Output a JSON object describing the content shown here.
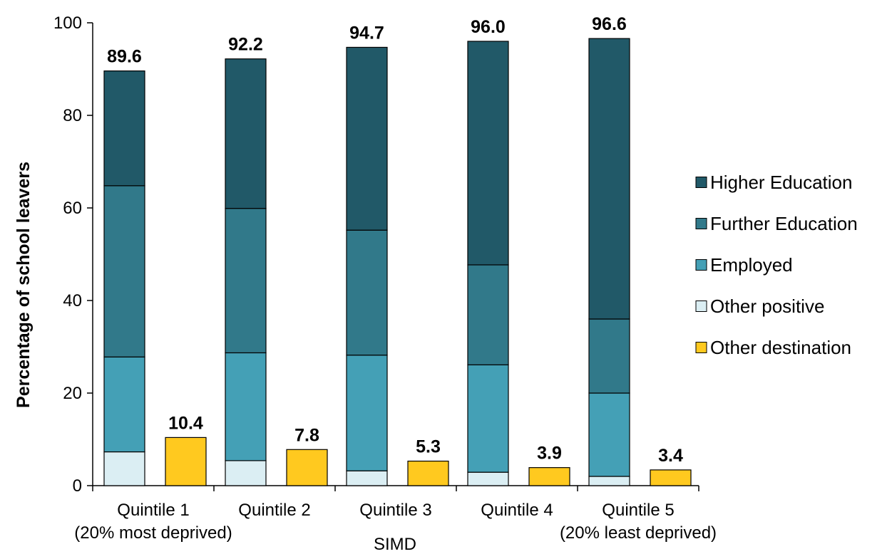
{
  "chart_data": {
    "type": "bar",
    "stacked": true,
    "ylabel": "Percentage of school leavers",
    "xlabel": "SIMD",
    "ylim": [
      0,
      100
    ],
    "yticks": [
      0,
      20,
      40,
      60,
      80,
      100
    ],
    "grid": false,
    "legend_position": "right",
    "categories": [
      {
        "line1": "Quintile 1",
        "line2": "(20% most deprived)"
      },
      {
        "line1": "Quintile 2",
        "line2": ""
      },
      {
        "line1": "Quintile 3",
        "line2": ""
      },
      {
        "line1": "Quintile 4",
        "line2": ""
      },
      {
        "line1": "Quintile 5",
        "line2": "(20% least deprived)"
      }
    ],
    "positive_series": [
      {
        "name": "Other positive",
        "color": "#dbeef3",
        "values": [
          7.3,
          5.4,
          3.2,
          2.9,
          2.0
        ]
      },
      {
        "name": "Employed",
        "color": "#44a0b6",
        "values": [
          20.5,
          23.3,
          25.0,
          23.2,
          18.0
        ]
      },
      {
        "name": "Further Education",
        "color": "#31798a",
        "values": [
          37.0,
          31.2,
          27.0,
          21.6,
          16.0
        ]
      },
      {
        "name": "Higher Education",
        "color": "#215968",
        "values": [
          24.8,
          32.3,
          39.5,
          48.3,
          60.6
        ]
      }
    ],
    "positive_totals": [
      "89.6",
      "92.2",
      "94.7",
      "96.0",
      "96.6"
    ],
    "other_series": {
      "name": "Other destination",
      "color": "#ffc91f",
      "values": [
        10.4,
        7.8,
        5.3,
        3.9,
        3.4
      ]
    },
    "other_labels": [
      "10.4",
      "7.8",
      "5.3",
      "3.9",
      "3.4"
    ],
    "legend": [
      {
        "name": "Higher Education",
        "color": "#215968"
      },
      {
        "name": "Further Education",
        "color": "#31798a"
      },
      {
        "name": "Employed",
        "color": "#44a0b6"
      },
      {
        "name": "Other positive",
        "color": "#dbeef3"
      },
      {
        "name": "Other destination",
        "color": "#ffc91f"
      }
    ]
  }
}
